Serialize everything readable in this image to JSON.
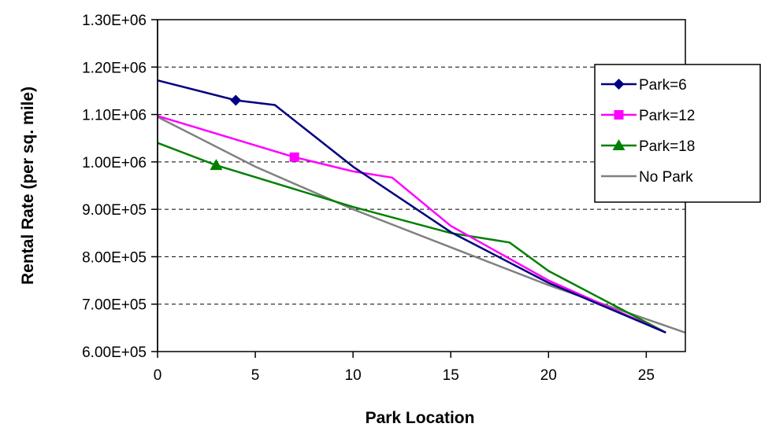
{
  "chart_data": {
    "type": "line",
    "xlabel": "Park Location",
    "ylabel": "Rental Rate (per sq. mile)",
    "xlim": [
      0,
      27
    ],
    "ylim": [
      600000,
      1300000
    ],
    "x_ticks": [
      0,
      5,
      10,
      15,
      20,
      25
    ],
    "x_tick_labels": [
      "0",
      "5",
      "10",
      "15",
      "20",
      "25"
    ],
    "y_ticks": [
      600000,
      700000,
      800000,
      900000,
      1000000,
      1100000,
      1200000,
      1300000
    ],
    "y_tick_labels": [
      "6.00E+05",
      "7.00E+05",
      "8.00E+05",
      "9.00E+05",
      "1.00E+06",
      "1.10E+06",
      "1.20E+06",
      "1.30E+06"
    ],
    "grid": "horizontal dashed",
    "legend": "right",
    "series": [
      {
        "name": "Park=6",
        "color": "#000080",
        "marker": "diamond",
        "marker_points": [
          [
            4,
            1130000
          ]
        ],
        "points": [
          [
            0,
            1172000
          ],
          [
            4,
            1130000
          ],
          [
            6,
            1120000
          ],
          [
            10,
            990000
          ],
          [
            15,
            852000
          ],
          [
            20,
            745000
          ],
          [
            26,
            640000
          ]
        ]
      },
      {
        "name": "Park=12",
        "color": "#FF00FF",
        "marker": "square",
        "marker_points": [
          [
            7,
            1010000
          ]
        ],
        "points": [
          [
            0,
            1097000
          ],
          [
            7,
            1010000
          ],
          [
            10,
            980000
          ],
          [
            12,
            967000
          ],
          [
            15,
            865000
          ],
          [
            20,
            750000
          ],
          [
            26,
            640000
          ]
        ]
      },
      {
        "name": "Park=18",
        "color": "#008000",
        "marker": "triangle",
        "marker_points": [
          [
            3,
            993000
          ]
        ],
        "points": [
          [
            0,
            1040000
          ],
          [
            3,
            993000
          ],
          [
            10,
            905000
          ],
          [
            15,
            850000
          ],
          [
            18,
            830000
          ],
          [
            20,
            770000
          ],
          [
            26,
            640000
          ]
        ]
      },
      {
        "name": "No Park",
        "color": "#808080",
        "marker": "none",
        "marker_points": [],
        "points": [
          [
            0,
            1095000
          ],
          [
            5,
            990000
          ],
          [
            10,
            900000
          ],
          [
            15,
            820000
          ],
          [
            20,
            740000
          ],
          [
            27,
            640000
          ]
        ]
      }
    ]
  }
}
